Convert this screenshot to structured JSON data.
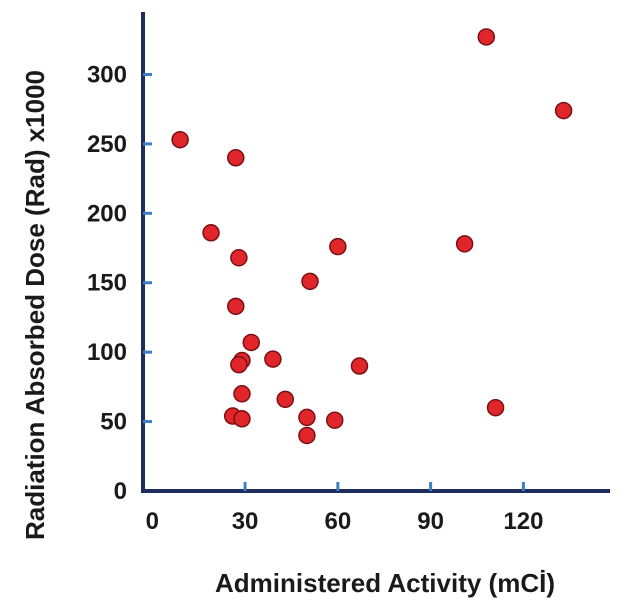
{
  "chart_data": {
    "type": "scatter",
    "title": "",
    "xlabel": "Administered Activity (mCİ)",
    "ylabel": "Radiation Absorbed Dose (Rad) x1000",
    "xlim": [
      -3,
      148
    ],
    "ylim": [
      0,
      345
    ],
    "x_ticks": [
      0,
      30,
      60,
      90,
      120
    ],
    "y_ticks": [
      0,
      50,
      100,
      150,
      200,
      250,
      300
    ],
    "grid": false,
    "legend": "none",
    "colors": {
      "axis": "#1f2d5c",
      "marker_fill": "#e0262b",
      "marker_stroke": "#7a1014"
    },
    "points": [
      {
        "x": 9,
        "y": 253
      },
      {
        "x": 19,
        "y": 186
      },
      {
        "x": 27,
        "y": 240
      },
      {
        "x": 28,
        "y": 168
      },
      {
        "x": 27,
        "y": 133
      },
      {
        "x": 32,
        "y": 107
      },
      {
        "x": 29,
        "y": 94
      },
      {
        "x": 28,
        "y": 91
      },
      {
        "x": 39,
        "y": 95
      },
      {
        "x": 29,
        "y": 70
      },
      {
        "x": 26,
        "y": 54
      },
      {
        "x": 29,
        "y": 52
      },
      {
        "x": 43,
        "y": 66
      },
      {
        "x": 50,
        "y": 53
      },
      {
        "x": 50,
        "y": 40
      },
      {
        "x": 51,
        "y": 151
      },
      {
        "x": 60,
        "y": 176
      },
      {
        "x": 59,
        "y": 51
      },
      {
        "x": 67,
        "y": 90
      },
      {
        "x": 101,
        "y": 178
      },
      {
        "x": 108,
        "y": 327
      },
      {
        "x": 111,
        "y": 60
      },
      {
        "x": 133,
        "y": 274
      }
    ]
  }
}
